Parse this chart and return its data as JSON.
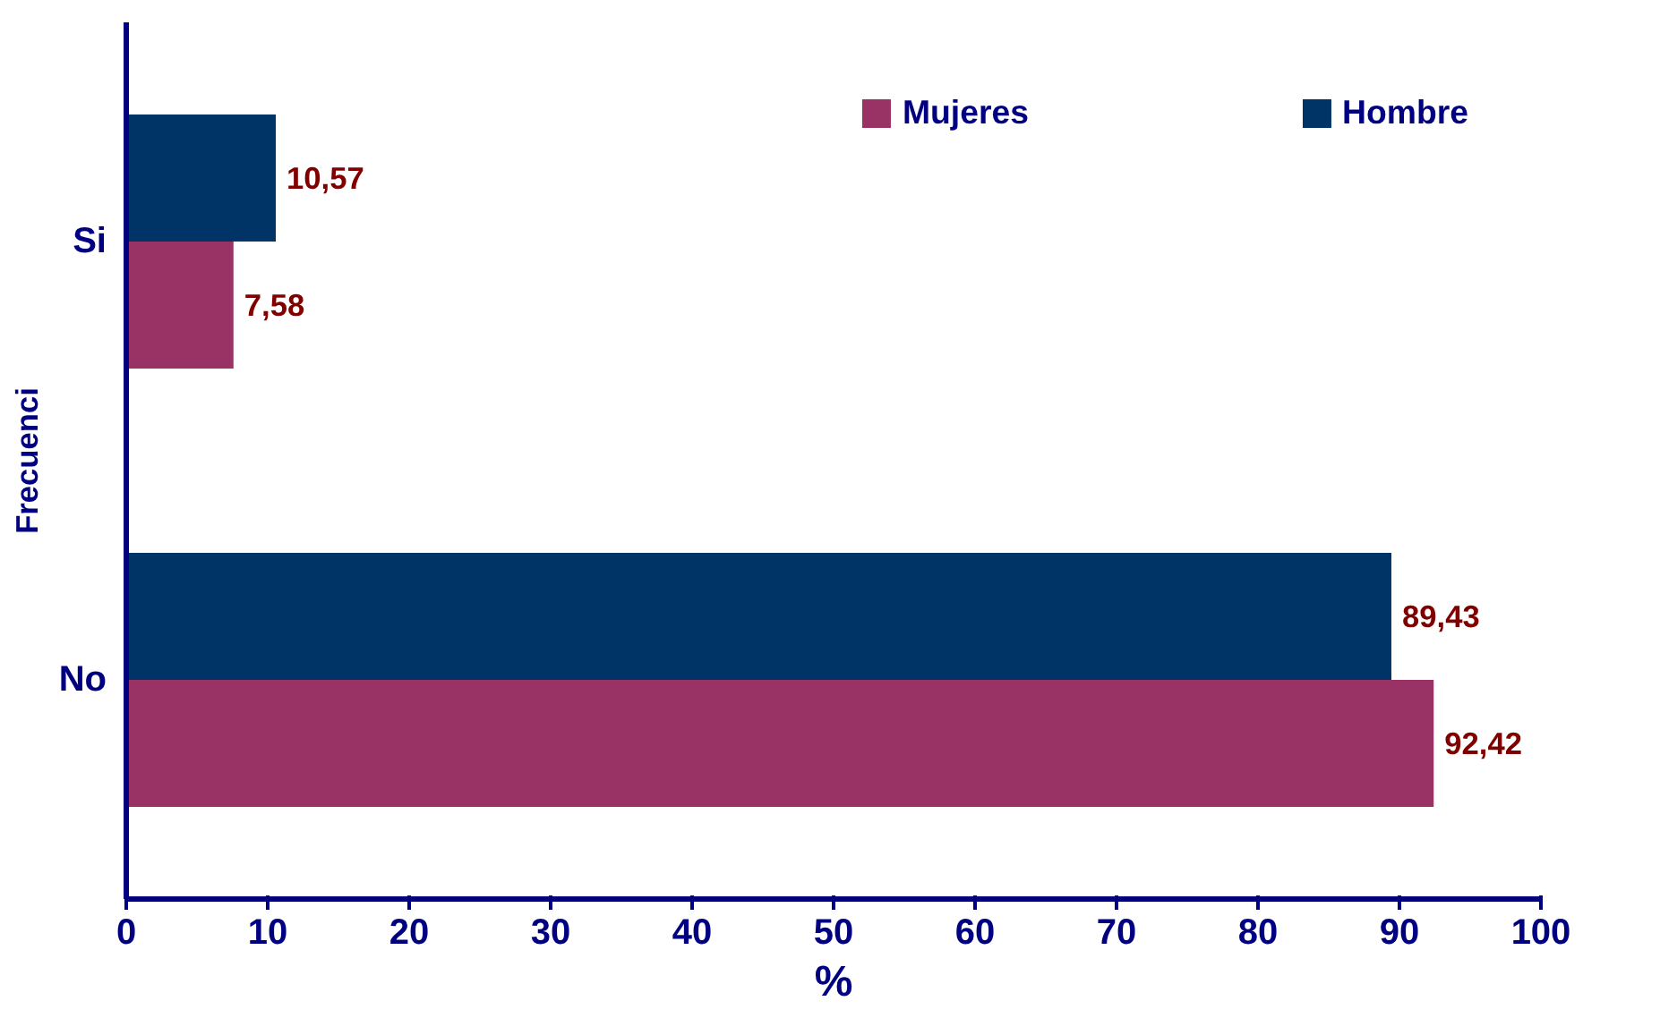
{
  "chart_data": {
    "type": "bar",
    "orientation": "horizontal",
    "xlabel": "%",
    "ylabel": "Frecuenci",
    "categories": [
      "Si",
      "No"
    ],
    "series": [
      {
        "name": "Mujeres",
        "color": "#993366",
        "values": [
          7.58,
          92.42
        ],
        "value_labels": [
          "7,58",
          "92,42"
        ]
      },
      {
        "name": "Hombre",
        "color": "#003366",
        "values": [
          10.57,
          89.43
        ],
        "value_labels": [
          "10,57",
          "89,43"
        ]
      }
    ],
    "xlim": [
      0,
      100
    ],
    "xticks": [
      0,
      10,
      20,
      30,
      40,
      50,
      60,
      70,
      80,
      90,
      100
    ],
    "grid": false,
    "legend": "top right"
  }
}
